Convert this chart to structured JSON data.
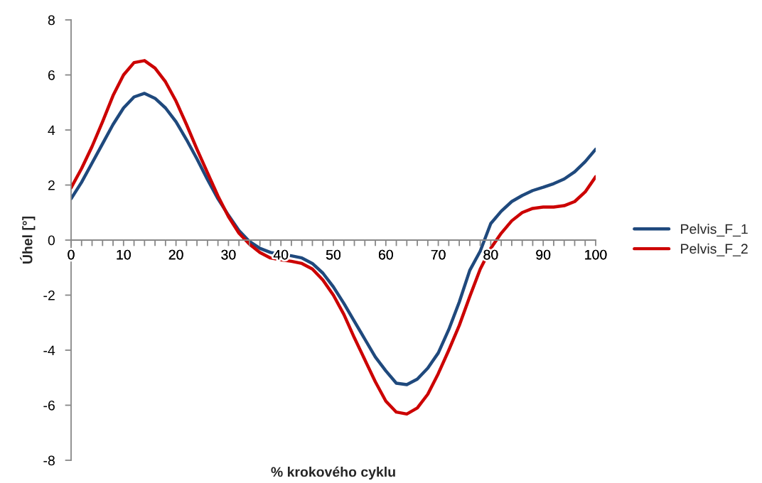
{
  "chart_data": {
    "type": "line",
    "xlabel": "% krokového cyklu",
    "ylabel": "Úhel [°]",
    "x": [
      0,
      2,
      4,
      6,
      8,
      10,
      12,
      14,
      16,
      18,
      20,
      22,
      24,
      26,
      28,
      30,
      32,
      34,
      36,
      38,
      40,
      42,
      44,
      46,
      48,
      50,
      52,
      54,
      56,
      58,
      60,
      62,
      64,
      66,
      68,
      70,
      72,
      74,
      76,
      78,
      80,
      82,
      84,
      86,
      88,
      90,
      92,
      94,
      96,
      98,
      100
    ],
    "series": [
      {
        "name": "Pelvis_F_1",
        "color": "#1f497d",
        "values": [
          1.5,
          2.1,
          2.8,
          3.5,
          4.2,
          4.8,
          5.2,
          5.33,
          5.15,
          4.8,
          4.3,
          3.65,
          2.95,
          2.2,
          1.5,
          0.9,
          0.35,
          -0.05,
          -0.3,
          -0.45,
          -0.52,
          -0.57,
          -0.65,
          -0.85,
          -1.2,
          -1.7,
          -2.3,
          -2.95,
          -3.6,
          -4.25,
          -4.75,
          -5.2,
          -5.25,
          -5.05,
          -4.65,
          -4.1,
          -3.25,
          -2.25,
          -1.1,
          -0.4,
          0.6,
          1.05,
          1.4,
          1.62,
          1.8,
          1.92,
          2.05,
          2.22,
          2.48,
          2.85,
          3.3
        ]
      },
      {
        "name": "Pelvis_F_2",
        "color": "#cc0000",
        "values": [
          1.9,
          2.6,
          3.4,
          4.3,
          5.25,
          6.0,
          6.45,
          6.52,
          6.25,
          5.75,
          5.05,
          4.2,
          3.3,
          2.45,
          1.6,
          0.85,
          0.25,
          -0.15,
          -0.45,
          -0.65,
          -0.72,
          -0.77,
          -0.85,
          -1.05,
          -1.45,
          -2.0,
          -2.7,
          -3.55,
          -4.35,
          -5.15,
          -5.85,
          -6.25,
          -6.32,
          -6.1,
          -5.6,
          -4.85,
          -4.0,
          -3.1,
          -2.05,
          -1.05,
          -0.3,
          0.25,
          0.7,
          1.0,
          1.15,
          1.2,
          1.2,
          1.25,
          1.4,
          1.75,
          2.3
        ]
      }
    ],
    "xlim": [
      0,
      100
    ],
    "xticks": [
      0,
      {
        "value": 2,
        "label": null
      },
      {
        "value": 4,
        "label": null
      },
      {
        "value": 6,
        "label": null
      },
      {
        "value": 8,
        "label": null
      },
      10,
      {
        "value": 12,
        "label": null
      },
      {
        "value": 14,
        "label": null
      },
      {
        "value": 16,
        "label": null
      },
      {
        "value": 18,
        "label": null
      },
      20,
      {
        "value": 22,
        "label": null
      },
      {
        "value": 24,
        "label": null
      },
      {
        "value": 26,
        "label": null
      },
      {
        "value": 28,
        "label": null
      },
      30,
      {
        "value": 32,
        "label": null
      },
      {
        "value": 34,
        "label": null
      },
      {
        "value": 36,
        "label": null
      },
      {
        "value": 38,
        "label": null
      },
      40,
      {
        "value": 42,
        "label": null
      },
      {
        "value": 44,
        "label": null
      },
      {
        "value": 46,
        "label": null
      },
      {
        "value": 48,
        "label": null
      },
      50,
      {
        "value": 52,
        "label": null
      },
      {
        "value": 54,
        "label": null
      },
      {
        "value": 56,
        "label": null
      },
      {
        "value": 58,
        "label": null
      },
      60,
      {
        "value": 62,
        "label": null
      },
      {
        "value": 64,
        "label": null
      },
      {
        "value": 66,
        "label": null
      },
      {
        "value": 68,
        "label": null
      },
      70,
      {
        "value": 72,
        "label": null
      },
      {
        "value": 74,
        "label": null
      },
      {
        "value": 76,
        "label": null
      },
      {
        "value": 78,
        "label": null
      },
      80,
      {
        "value": 82,
        "label": null
      },
      {
        "value": 84,
        "label": null
      },
      {
        "value": 86,
        "label": null
      },
      {
        "value": 88,
        "label": null
      },
      90,
      {
        "value": 92,
        "label": null
      },
      {
        "value": 94,
        "label": null
      },
      {
        "value": 96,
        "label": null
      },
      {
        "value": 98,
        "label": null
      },
      100
    ],
    "ylim": [
      -8,
      8
    ],
    "yticks": [
      -8,
      -6,
      -4,
      -2,
      0,
      2,
      4,
      6,
      8
    ],
    "grid": false,
    "legend": "right",
    "marker": "none",
    "line_style": "solid"
  }
}
